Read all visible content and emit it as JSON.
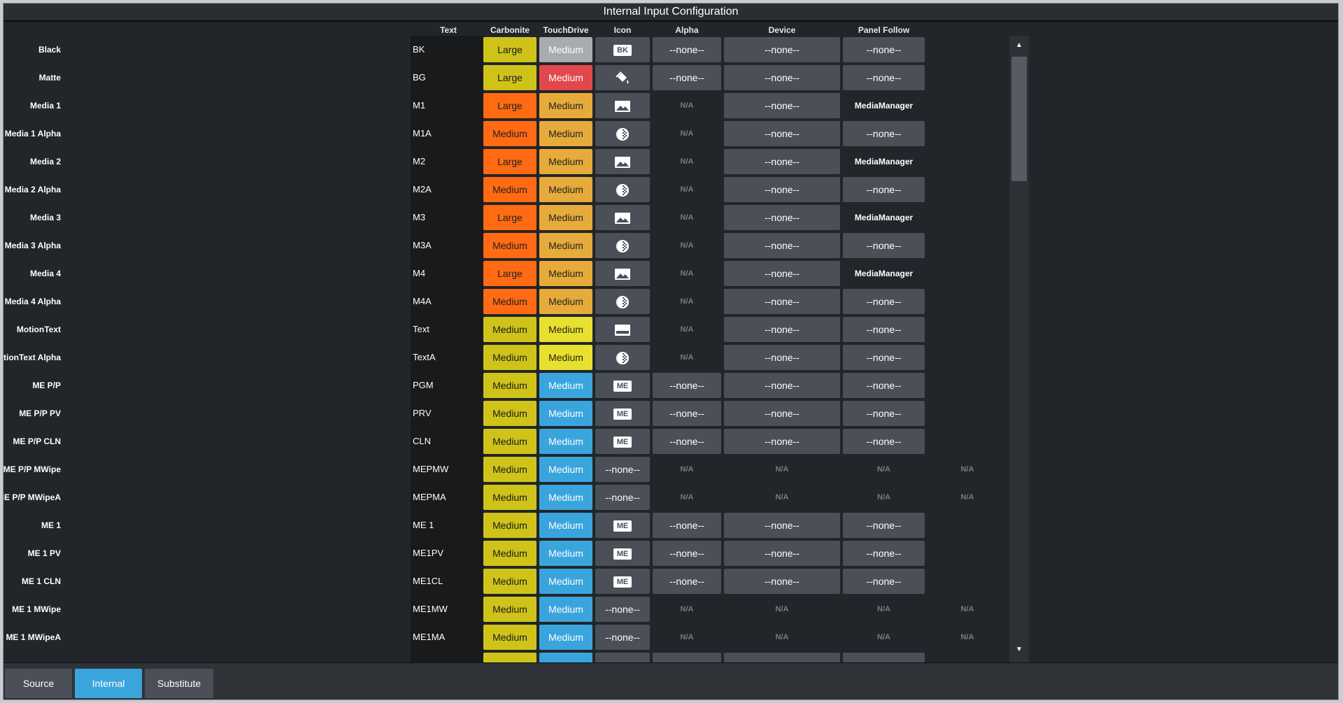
{
  "window": {
    "title": "Internal Input Configuration"
  },
  "columns": {
    "text": "Text",
    "carbonite": "Carbonite",
    "touchdrive": "TouchDrive",
    "icon": "Icon",
    "alpha": "Alpha",
    "device": "Device",
    "panel_follow": "Panel Follow"
  },
  "colors": {
    "background": "#222529",
    "yellow_large": "#cfc31a",
    "orange": "#ff6a12",
    "grey": "#a9abae",
    "red": "#e2474c",
    "amber": "#e6ab3a",
    "bright_yellow": "#e8e02f",
    "blue": "#3aa4dd",
    "button": "#4b4f57",
    "active_tab": "#3aa4dd"
  },
  "rows": [
    {
      "label": "Black",
      "text": "BK",
      "carbonite": "Large",
      "carb_color": "yellowlarge",
      "touch": "Medium",
      "touch_color": "grey",
      "icon": "BK",
      "icon_type": "badge",
      "alpha": "--none--",
      "device": "--none--",
      "panel": "--none--"
    },
    {
      "label": "Matte",
      "text": "BG",
      "carbonite": "Large",
      "carb_color": "yellowlarge",
      "touch": "Medium",
      "touch_color": "red",
      "icon": "paint-bucket-icon",
      "icon_type": "bucket",
      "alpha": "--none--",
      "device": "--none--",
      "panel": "--none--"
    },
    {
      "label": "Media 1",
      "text": "M1",
      "carbonite": "Large",
      "carb_color": "orange",
      "touch": "Medium",
      "touch_color": "amber",
      "icon": "image-icon",
      "icon_type": "image",
      "alpha": "N/A",
      "device": "--none--",
      "panel": "MediaManager"
    },
    {
      "label": "Media 1 Alpha",
      "text": "M1A",
      "carbonite": "Medium",
      "carb_color": "orange",
      "touch": "Medium",
      "touch_color": "amber",
      "icon": "alpha-icon",
      "icon_type": "alpha",
      "alpha": "N/A",
      "device": "--none--",
      "panel": "--none--"
    },
    {
      "label": "Media 2",
      "text": "M2",
      "carbonite": "Large",
      "carb_color": "orange",
      "touch": "Medium",
      "touch_color": "amber",
      "icon": "image-icon",
      "icon_type": "image",
      "alpha": "N/A",
      "device": "--none--",
      "panel": "MediaManager"
    },
    {
      "label": "Media 2 Alpha",
      "text": "M2A",
      "carbonite": "Medium",
      "carb_color": "orange",
      "touch": "Medium",
      "touch_color": "amber",
      "icon": "alpha-icon",
      "icon_type": "alpha",
      "alpha": "N/A",
      "device": "--none--",
      "panel": "--none--"
    },
    {
      "label": "Media 3",
      "text": "M3",
      "carbonite": "Large",
      "carb_color": "orange",
      "touch": "Medium",
      "touch_color": "amber",
      "icon": "image-icon",
      "icon_type": "image",
      "alpha": "N/A",
      "device": "--none--",
      "panel": "MediaManager"
    },
    {
      "label": "Media 3 Alpha",
      "text": "M3A",
      "carbonite": "Medium",
      "carb_color": "orange",
      "touch": "Medium",
      "touch_color": "amber",
      "icon": "alpha-icon",
      "icon_type": "alpha",
      "alpha": "N/A",
      "device": "--none--",
      "panel": "--none--"
    },
    {
      "label": "Media 4",
      "text": "M4",
      "carbonite": "Large",
      "carb_color": "orange",
      "touch": "Medium",
      "touch_color": "amber",
      "icon": "image-icon",
      "icon_type": "image",
      "alpha": "N/A",
      "device": "--none--",
      "panel": "MediaManager"
    },
    {
      "label": "Media 4 Alpha",
      "text": "M4A",
      "carbonite": "Medium",
      "carb_color": "orange",
      "touch": "Medium",
      "touch_color": "amber",
      "icon": "alpha-icon",
      "icon_type": "alpha",
      "alpha": "N/A",
      "device": "--none--",
      "panel": "--none--"
    },
    {
      "label": "MotionText",
      "text": "Text",
      "carbonite": "Medium",
      "carb_color": "yellowlarge",
      "touch": "Medium",
      "touch_color": "brightyellow",
      "icon": "text-icon",
      "icon_type": "textbox",
      "alpha": "N/A",
      "device": "--none--",
      "panel": "--none--"
    },
    {
      "label": "MotionText  Alpha",
      "text": "TextA",
      "carbonite": "Medium",
      "carb_color": "yellowlarge",
      "touch": "Medium",
      "touch_color": "brightyellow",
      "icon": "alpha-icon",
      "icon_type": "alpha",
      "alpha": "N/A",
      "device": "--none--",
      "panel": "--none--"
    },
    {
      "label": "ME P/P",
      "text": "PGM",
      "carbonite": "Medium",
      "carb_color": "yellowlarge",
      "touch": "Medium",
      "touch_color": "blue",
      "icon": "ME",
      "icon_type": "badge",
      "alpha": "--none--",
      "device": "--none--",
      "panel": "--none--"
    },
    {
      "label": "ME P/P PV",
      "text": "PRV",
      "carbonite": "Medium",
      "carb_color": "yellowlarge",
      "touch": "Medium",
      "touch_color": "blue",
      "icon": "ME",
      "icon_type": "badge",
      "alpha": "--none--",
      "device": "--none--",
      "panel": "--none--"
    },
    {
      "label": "ME P/P CLN",
      "text": "CLN",
      "carbonite": "Medium",
      "carb_color": "yellowlarge",
      "touch": "Medium",
      "touch_color": "blue",
      "icon": "ME",
      "icon_type": "badge",
      "alpha": "--none--",
      "device": "--none--",
      "panel": "--none--"
    },
    {
      "label": "ME P/P MWipe",
      "text": "MEPMW",
      "carbonite": "Medium",
      "carb_color": "yellowlarge",
      "touch": "Medium",
      "touch_color": "blue",
      "icon": "--none--",
      "icon_type": "none",
      "alpha": "N/A",
      "device": "N/A",
      "panel": "N/A",
      "extra": "N/A"
    },
    {
      "label": "ME P/P MWipeA",
      "text": "MEPMA",
      "carbonite": "Medium",
      "carb_color": "yellowlarge",
      "touch": "Medium",
      "touch_color": "blue",
      "icon": "--none--",
      "icon_type": "none",
      "alpha": "N/A",
      "device": "N/A",
      "panel": "N/A",
      "extra": "N/A"
    },
    {
      "label": "ME 1",
      "text": "ME 1",
      "carbonite": "Medium",
      "carb_color": "yellowlarge",
      "touch": "Medium",
      "touch_color": "blue",
      "icon": "ME",
      "icon_type": "badge",
      "alpha": "--none--",
      "device": "--none--",
      "panel": "--none--"
    },
    {
      "label": "ME 1 PV",
      "text": "ME1PV",
      "carbonite": "Medium",
      "carb_color": "yellowlarge",
      "touch": "Medium",
      "touch_color": "blue",
      "icon": "ME",
      "icon_type": "badge",
      "alpha": "--none--",
      "device": "--none--",
      "panel": "--none--"
    },
    {
      "label": "ME 1 CLN",
      "text": "ME1CL",
      "carbonite": "Medium",
      "carb_color": "yellowlarge",
      "touch": "Medium",
      "touch_color": "blue",
      "icon": "ME",
      "icon_type": "badge",
      "alpha": "--none--",
      "device": "--none--",
      "panel": "--none--"
    },
    {
      "label": "ME 1 MWipe",
      "text": "ME1MW",
      "carbonite": "Medium",
      "carb_color": "yellowlarge",
      "touch": "Medium",
      "touch_color": "blue",
      "icon": "--none--",
      "icon_type": "none",
      "alpha": "N/A",
      "device": "N/A",
      "panel": "N/A",
      "extra": "N/A"
    },
    {
      "label": "ME 1 MWipeA",
      "text": "ME1MA",
      "carbonite": "Medium",
      "carb_color": "yellowlarge",
      "touch": "Medium",
      "touch_color": "blue",
      "icon": "--none--",
      "icon_type": "none",
      "alpha": "N/A",
      "device": "N/A",
      "panel": "N/A",
      "extra": "N/A"
    }
  ],
  "scroll": {
    "up": "▲",
    "down": "▼"
  },
  "tabs": [
    {
      "label": "Source",
      "active": false
    },
    {
      "label": "Internal",
      "active": true
    },
    {
      "label": "Substitute",
      "active": false
    }
  ]
}
